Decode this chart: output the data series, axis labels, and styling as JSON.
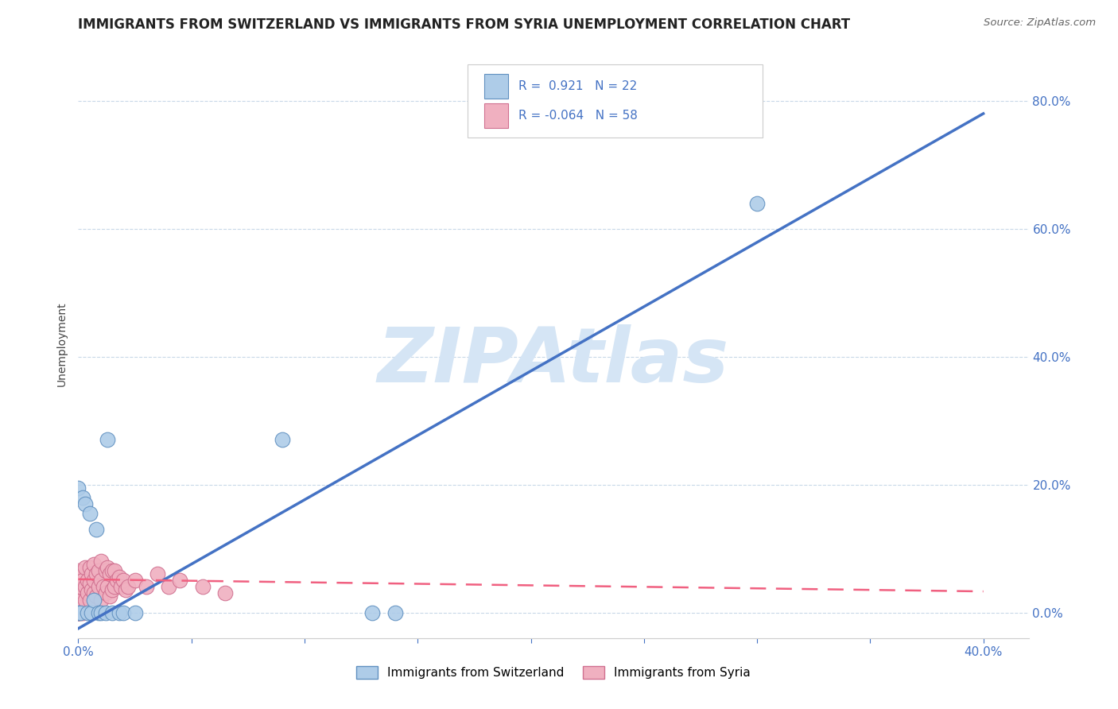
{
  "title": "IMMIGRANTS FROM SWITZERLAND VS IMMIGRANTS FROM SYRIA UNEMPLOYMENT CORRELATION CHART",
  "source_text": "Source: ZipAtlas.com",
  "ylabel": "Unemployment",
  "xlim": [
    0.0,
    0.42
  ],
  "ylim": [
    -0.04,
    0.88
  ],
  "xticks": [
    0.0,
    0.05,
    0.1,
    0.15,
    0.2,
    0.25,
    0.3,
    0.35,
    0.4
  ],
  "yticks_right": [
    0.0,
    0.2,
    0.4,
    0.6,
    0.8
  ],
  "xtick_labels": [
    "0.0%",
    "",
    "",
    "",
    "",
    "",
    "",
    "",
    "40.0%"
  ],
  "ytick_labels_right": [
    "0.0%",
    "20.0%",
    "40.0%",
    "60.0%",
    "80.0%"
  ],
  "title_color": "#222222",
  "title_fontsize": 12,
  "tick_color": "#4472c4",
  "watermark": "ZIPAtlas",
  "watermark_color": "#d5e5f5",
  "watermark_fontsize": 70,
  "switzerland_color": "#aecce8",
  "syria_color": "#f0b0c0",
  "switzerland_edge": "#6090c0",
  "syria_edge": "#d07090",
  "regression_line_color_swiss": "#4472c4",
  "regression_line_color_syria": "#f06080",
  "swiss_line_x0": 0.0,
  "swiss_line_y0": -0.025,
  "swiss_line_x1": 0.4,
  "swiss_line_y1": 0.78,
  "syria_line_x0": 0.0,
  "syria_line_y0": 0.052,
  "syria_line_x1": 0.4,
  "syria_line_y1": 0.033,
  "R_swiss": "0.921",
  "N_swiss": "22",
  "R_syria": "-0.064",
  "N_syria": "58",
  "legend_label_swiss": "Immigrants from Switzerland",
  "legend_label_syria": "Immigrants from Syria",
  "swiss_points_x": [
    0.0,
    0.0,
    0.001,
    0.002,
    0.003,
    0.004,
    0.005,
    0.006,
    0.007,
    0.008,
    0.009,
    0.01,
    0.012,
    0.013,
    0.015,
    0.018,
    0.02,
    0.025,
    0.09,
    0.13,
    0.14,
    0.3
  ],
  "swiss_points_y": [
    0.0,
    0.195,
    0.0,
    0.18,
    0.17,
    0.0,
    0.155,
    0.0,
    0.02,
    0.13,
    0.0,
    0.0,
    0.0,
    0.27,
    0.0,
    0.0,
    0.0,
    0.0,
    0.27,
    0.0,
    0.0,
    0.64
  ],
  "syria_points_x": [
    0.0,
    0.0,
    0.0,
    0.0,
    0.0,
    0.0,
    0.0,
    0.0,
    0.0,
    0.0,
    0.001,
    0.001,
    0.002,
    0.002,
    0.003,
    0.003,
    0.003,
    0.004,
    0.004,
    0.005,
    0.005,
    0.005,
    0.006,
    0.006,
    0.007,
    0.007,
    0.007,
    0.008,
    0.008,
    0.009,
    0.009,
    0.01,
    0.01,
    0.01,
    0.011,
    0.012,
    0.012,
    0.013,
    0.013,
    0.014,
    0.014,
    0.015,
    0.015,
    0.016,
    0.016,
    0.017,
    0.018,
    0.019,
    0.02,
    0.021,
    0.022,
    0.025,
    0.03,
    0.035,
    0.04,
    0.045,
    0.055,
    0.065
  ],
  "syria_points_y": [
    0.0,
    0.0,
    0.0,
    0.0,
    0.02,
    0.03,
    0.04,
    0.05,
    0.055,
    0.065,
    0.0,
    0.04,
    0.0,
    0.05,
    0.02,
    0.04,
    0.07,
    0.03,
    0.05,
    0.02,
    0.045,
    0.07,
    0.035,
    0.06,
    0.03,
    0.05,
    0.075,
    0.025,
    0.06,
    0.04,
    0.065,
    0.02,
    0.05,
    0.08,
    0.04,
    0.03,
    0.065,
    0.04,
    0.07,
    0.025,
    0.06,
    0.035,
    0.065,
    0.04,
    0.065,
    0.05,
    0.055,
    0.04,
    0.05,
    0.035,
    0.04,
    0.05,
    0.04,
    0.06,
    0.04,
    0.05,
    0.04,
    0.03
  ],
  "grid_color": "#c8d8e8",
  "background_color": "#ffffff"
}
